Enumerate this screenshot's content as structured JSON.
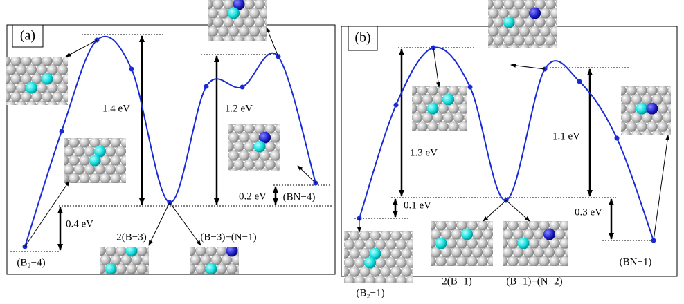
{
  "panels": [
    {
      "label": "(a)",
      "energies": [
        "1.4 eV",
        "1.2 eV",
        "0.4 eV",
        "0.2 eV"
      ],
      "states": [
        "(B₂−4)",
        "2(B−3)",
        "(B−3)+(N−1)",
        "(BN−4)"
      ]
    },
    {
      "label": "(b)",
      "energies": [
        "1.3 eV",
        "1.1 eV",
        "0.1 eV",
        "0.3 eV"
      ],
      "states": [
        "(B₂−1)",
        "2(B−1)",
        "(B−1)+(N−2)",
        "(BN−1)"
      ]
    }
  ]
}
